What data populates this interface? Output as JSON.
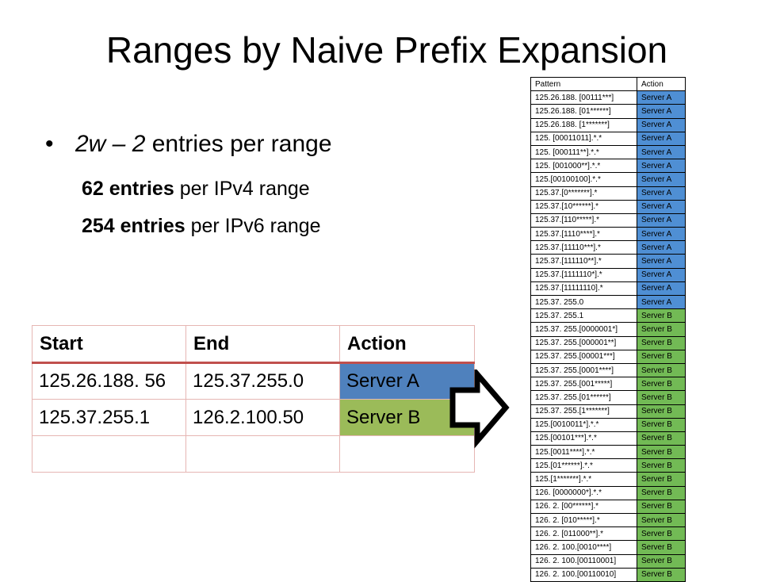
{
  "title": "Ranges by Naive Prefix Expansion",
  "bullets": {
    "main": {
      "italic": "2w – 2",
      "rest": " entries per range"
    },
    "sub1": {
      "bold": "62 entries",
      "rest": " per IPv4 range"
    },
    "sub2": {
      "bold": "254 entries",
      "rest": " per IPv6 range"
    }
  },
  "range_table": {
    "headers": [
      "Start",
      "End",
      "Action"
    ],
    "rows": [
      {
        "start": "125.26.188. 56",
        "end": "125.37.255.0",
        "action": "Server A",
        "color": "#4f81bd"
      },
      {
        "start": "125.37.255.1",
        "end": "126.2.100.50",
        "action": "Server B",
        "color": "#9bbb59"
      },
      {
        "start": "",
        "end": "",
        "action": ""
      }
    ]
  },
  "pattern_table": {
    "headers": [
      "Pattern",
      "Action"
    ],
    "colors": {
      "server_a": "#4f8fd4",
      "server_b": "#72ba55"
    },
    "rows": [
      {
        "pattern": "125.26.188. [00111***]",
        "action": "Server A"
      },
      {
        "pattern": "125.26.188. [01******]",
        "action": "Server A"
      },
      {
        "pattern": "125.26.188. [1*******]",
        "action": "Server A"
      },
      {
        "pattern": "125. [00011011].*.*",
        "action": "Server A"
      },
      {
        "pattern": "125. [000111**].*.*",
        "action": "Server A"
      },
      {
        "pattern": "125. [001000**].*.*",
        "action": "Server A"
      },
      {
        "pattern": "125.[00100100].*.*",
        "action": "Server A"
      },
      {
        "pattern": "125.37.[0*******].*",
        "action": "Server A"
      },
      {
        "pattern": "125.37.[10******].*",
        "action": "Server A"
      },
      {
        "pattern": "125.37.[110*****].*",
        "action": "Server A"
      },
      {
        "pattern": "125.37.[1110****].*",
        "action": "Server A"
      },
      {
        "pattern": "125.37.[11110***].*",
        "action": "Server A"
      },
      {
        "pattern": "125.37.[111110**].*",
        "action": "Server A"
      },
      {
        "pattern": "125.37.[1111110*].*",
        "action": "Server A"
      },
      {
        "pattern": "125.37.[11111110].*",
        "action": "Server A"
      },
      {
        "pattern": "125.37. 255.0",
        "action": "Server A"
      },
      {
        "pattern": "125.37. 255.1",
        "action": "Server B"
      },
      {
        "pattern": "125.37. 255.[0000001*]",
        "action": "Server B"
      },
      {
        "pattern": "125.37. 255.[000001**]",
        "action": "Server B"
      },
      {
        "pattern": "125.37. 255.[00001***]",
        "action": "Server B"
      },
      {
        "pattern": "125.37. 255.[0001****]",
        "action": "Server B"
      },
      {
        "pattern": "125.37. 255.[001*****]",
        "action": "Server B"
      },
      {
        "pattern": "125.37. 255.[01******]",
        "action": "Server B"
      },
      {
        "pattern": "125.37. 255.[1*******]",
        "action": "Server B"
      },
      {
        "pattern": "125.[0010011*].*.*",
        "action": "Server B"
      },
      {
        "pattern": "125.[00101***].*.*",
        "action": "Server B"
      },
      {
        "pattern": "125.[0011****].*.*",
        "action": "Server B"
      },
      {
        "pattern": "125.[01******].*.*",
        "action": "Server B"
      },
      {
        "pattern": "125.[1*******].*.*",
        "action": "Server B"
      },
      {
        "pattern": "126. [0000000*].*.*",
        "action": "Server B"
      },
      {
        "pattern": "126. 2. [00******].*",
        "action": "Server B"
      },
      {
        "pattern": "126. 2. [010*****].*",
        "action": "Server B"
      },
      {
        "pattern": "126. 2. [011000**].*",
        "action": "Server B"
      },
      {
        "pattern": "126. 2. 100.[0010****]",
        "action": "Server B"
      },
      {
        "pattern": "126. 2. 100.[00110001]",
        "action": "Server B"
      },
      {
        "pattern": "126. 2. 100.[00110010]",
        "action": "Server B"
      }
    ]
  }
}
